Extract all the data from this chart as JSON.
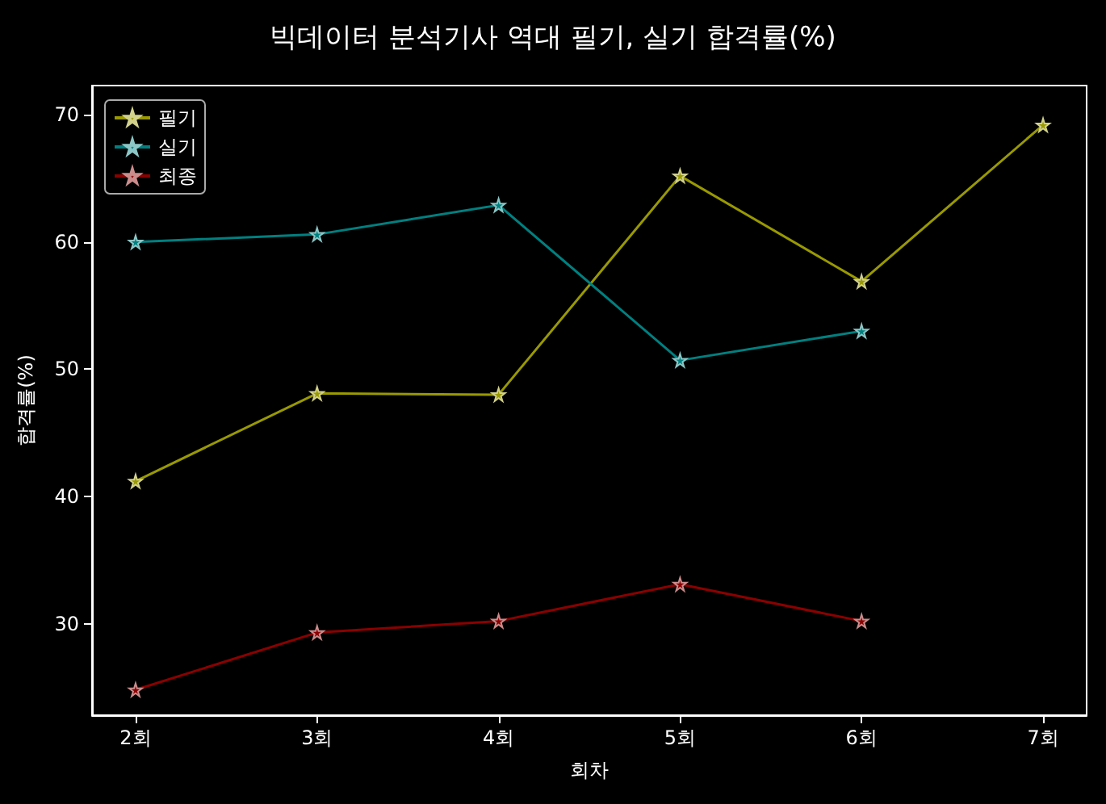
{
  "chart_data": {
    "type": "line",
    "title": "빅데이터 분석기사 역대 필기, 실기 합격률(%)",
    "xlabel": "회차",
    "ylabel": "합격률(%)",
    "categories": [
      "2회",
      "3회",
      "4회",
      "5회",
      "6회",
      "7회"
    ],
    "series": [
      {
        "name": "필기",
        "color": "#999900",
        "values": [
          41.2,
          48.1,
          48.0,
          65.2,
          56.9,
          69.2
        ]
      },
      {
        "name": "실기",
        "color": "#008080",
        "values": [
          60.0,
          60.6,
          62.9,
          50.7,
          53.0,
          null
        ]
      },
      {
        "name": "최종",
        "color": "#8b0000",
        "values": [
          24.8,
          29.3,
          30.2,
          33.1,
          30.2,
          null
        ]
      }
    ],
    "ylim": [
      22.8,
      72.3
    ],
    "yticks": [
      30,
      40,
      50,
      60,
      70
    ],
    "grid": false,
    "legend": "top left",
    "marker": "star",
    "line_style": "solid"
  }
}
